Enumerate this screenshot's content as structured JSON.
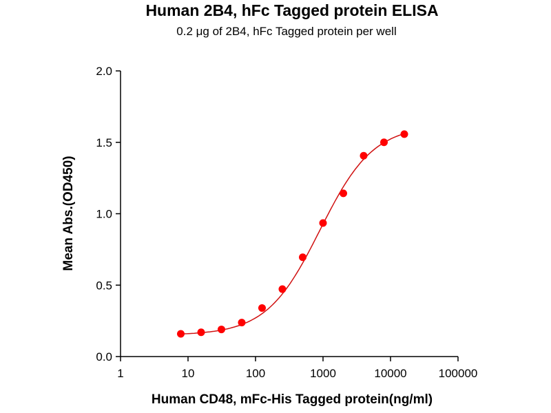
{
  "chart_data": {
    "type": "scatter",
    "title": "Human 2B4, hFc Tagged protein ELISA",
    "subtitle": "0.2 μg of 2B4, hFc Tagged protein per well",
    "xlabel": "Human CD48, mFc-His Tagged protein(ng/ml)",
    "ylabel": "Mean Abs.(OD450)",
    "xscale": "log",
    "xlim": [
      1,
      100000
    ],
    "ylim": [
      0,
      2.0
    ],
    "xticks": [
      "1",
      "10",
      "100",
      "1000",
      "10000",
      "100000"
    ],
    "yticks": [
      "0.0",
      "0.5",
      "1.0",
      "1.5",
      "2.0"
    ],
    "grid": false,
    "color": "#ff0000",
    "line_color": "#d01010",
    "x": [
      7.8125,
      15.625,
      31.25,
      62.5,
      125,
      250,
      500,
      1000,
      2000,
      4000,
      8000,
      16000
    ],
    "y": [
      0.159,
      0.17,
      0.19,
      0.238,
      0.34,
      0.472,
      0.695,
      0.935,
      1.143,
      1.406,
      1.5,
      1.557
    ]
  }
}
